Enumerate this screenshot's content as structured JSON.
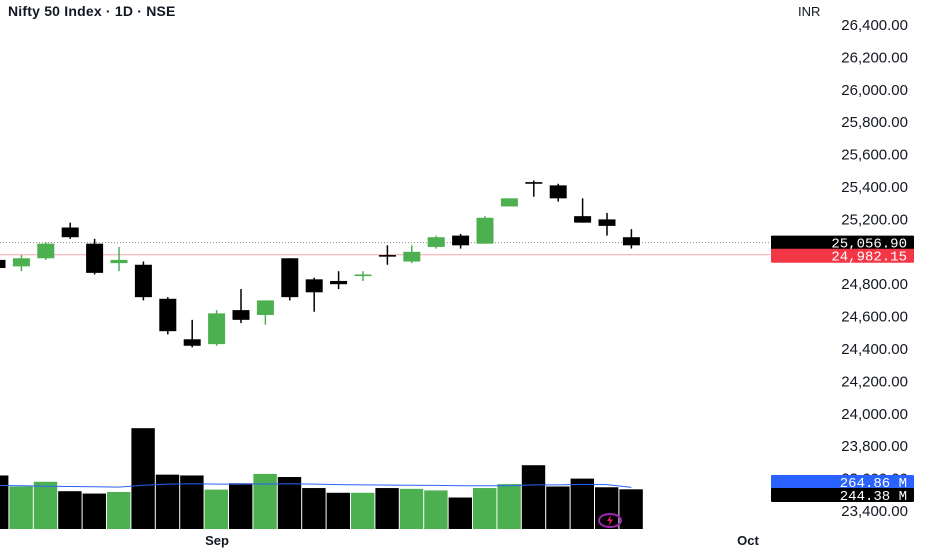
{
  "header": {
    "title": "Nifty 50 Index · 1D · NSE",
    "currency": "INR"
  },
  "colors": {
    "up": "#4caf50",
    "down": "#000000",
    "ma_line": "#2962ff",
    "last_tag": "#000000",
    "prev_close_tag": "#f23645",
    "volume_tag": "#2962ff",
    "volume_value_tag": "#000000"
  },
  "chart_data": {
    "type": "candlestick",
    "title": "Nifty 50 Index · 1D · NSE",
    "y_axis": {
      "ticks": [
        "26,400.00",
        "26,200.00",
        "26,000.00",
        "25,800.00",
        "25,600.00",
        "25,400.00",
        "25,200.00",
        "25,000.00",
        "24,800.00",
        "24,600.00",
        "24,400.00",
        "24,200.00",
        "24,000.00",
        "23,800.00",
        "23,600.00",
        "23,400.00"
      ],
      "range": [
        23400,
        26400
      ],
      "position": "right"
    },
    "x_axis": {
      "labels": [
        "Sep",
        "Oct"
      ]
    },
    "candles": [
      {
        "o": 24950,
        "h": 24960,
        "l": 24890,
        "c": 24900
      },
      {
        "o": 24910,
        "h": 24980,
        "l": 24880,
        "c": 24960
      },
      {
        "o": 24960,
        "h": 25060,
        "l": 24950,
        "c": 25050
      },
      {
        "o": 25150,
        "h": 25180,
        "l": 25080,
        "c": 25090
      },
      {
        "o": 25050,
        "h": 25080,
        "l": 24860,
        "c": 24870
      },
      {
        "o": 24930,
        "h": 25030,
        "l": 24880,
        "c": 24950
      },
      {
        "o": 24920,
        "h": 24940,
        "l": 24700,
        "c": 24720
      },
      {
        "o": 24710,
        "h": 24720,
        "l": 24490,
        "c": 24510
      },
      {
        "o": 24460,
        "h": 24580,
        "l": 24410,
        "c": 24420
      },
      {
        "o": 24430,
        "h": 24640,
        "l": 24420,
        "c": 24620
      },
      {
        "o": 24640,
        "h": 24770,
        "l": 24560,
        "c": 24580
      },
      {
        "o": 24610,
        "h": 24700,
        "l": 24550,
        "c": 24700
      },
      {
        "o": 24960,
        "h": 24960,
        "l": 24700,
        "c": 24720
      },
      {
        "o": 24830,
        "h": 24840,
        "l": 24630,
        "c": 24750
      },
      {
        "o": 24820,
        "h": 24880,
        "l": 24770,
        "c": 24800
      },
      {
        "o": 24850,
        "h": 24880,
        "l": 24820,
        "c": 24860
      },
      {
        "o": 24980,
        "h": 25040,
        "l": 24920,
        "c": 24970
      },
      {
        "o": 24940,
        "h": 25040,
        "l": 24930,
        "c": 25000
      },
      {
        "o": 25030,
        "h": 25100,
        "l": 25020,
        "c": 25090
      },
      {
        "o": 25100,
        "h": 25110,
        "l": 25020,
        "c": 25040
      },
      {
        "o": 25050,
        "h": 25220,
        "l": 25050,
        "c": 25210
      },
      {
        "o": 25280,
        "h": 25330,
        "l": 25280,
        "c": 25330
      },
      {
        "o": 25430,
        "h": 25440,
        "l": 25340,
        "c": 25420
      },
      {
        "o": 25410,
        "h": 25420,
        "l": 25310,
        "c": 25330
      },
      {
        "o": 25220,
        "h": 25330,
        "l": 25180,
        "c": 25180
      },
      {
        "o": 25200,
        "h": 25240,
        "l": 25100,
        "c": 25160
      },
      {
        "o": 25090,
        "h": 25140,
        "l": 25020,
        "c": 25040
      }
    ],
    "volume": [
      340,
      270,
      300,
      240,
      225,
      235,
      640,
      345,
      340,
      250,
      290,
      350,
      330,
      260,
      230,
      230,
      260,
      255,
      245,
      200,
      260,
      285,
      405,
      270,
      320,
      265,
      252
    ],
    "volume_ma": [
      276,
      274,
      272,
      270,
      268,
      266,
      278,
      285,
      287,
      285,
      285,
      286,
      287,
      285,
      282,
      280,
      279,
      278,
      277,
      275,
      274,
      274,
      280,
      280,
      283,
      282,
      264
    ],
    "last_price": "25,056.90",
    "last_price_value": 25056.9,
    "prev_close": "24,982.15",
    "prev_close_value": 24982.15,
    "volume_ma_label": "264.86 M",
    "volume_label": "244.38 M"
  }
}
